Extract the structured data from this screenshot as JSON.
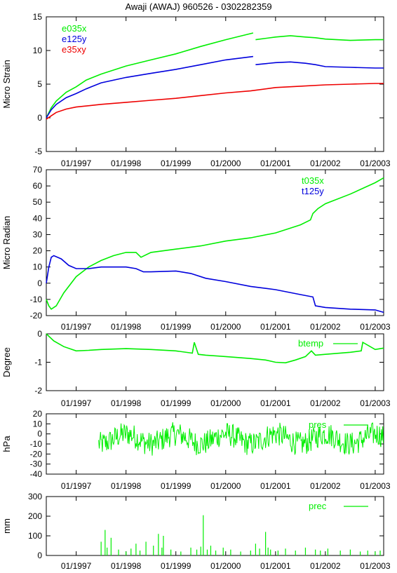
{
  "title": "Awaji (AWAJ) 960526 - 0302282359",
  "colors": {
    "green": "#00ee00",
    "blue": "#0000dd",
    "red": "#ee0000"
  },
  "x_time_range": [
    1996.4,
    2003.17
  ],
  "x_tick_labels": [
    "01/1997",
    "01/1998",
    "01/1999",
    "01/2000",
    "01/2001",
    "01/2002",
    "01/2003"
  ],
  "chart_data": [
    {
      "type": "line",
      "ylabel": "Micro Strain",
      "ylim": [
        -5,
        15
      ],
      "yticks": [
        -5,
        0,
        5,
        10,
        15
      ],
      "legend_position": "top-left",
      "series": [
        {
          "name": "e035x",
          "color": "#00ee00",
          "x": [
            1996.4,
            1996.5,
            1996.6,
            1996.8,
            1997.0,
            1997.2,
            1997.5,
            1998.0,
            1998.5,
            1999.0,
            1999.5,
            2000.0,
            2000.55,
            null,
            2000.6,
            2001.0,
            2001.3,
            2001.6,
            2001.8,
            2002.0,
            2002.5,
            2003.0,
            2003.17
          ],
          "y": [
            0.0,
            1.5,
            2.5,
            3.8,
            4.6,
            5.6,
            6.5,
            7.7,
            8.6,
            9.5,
            10.6,
            11.6,
            12.6,
            null,
            11.6,
            12.0,
            12.2,
            12.0,
            11.9,
            11.7,
            11.5,
            11.6,
            11.6
          ]
        },
        {
          "name": "e125y",
          "color": "#0000dd",
          "x": [
            1996.4,
            1996.5,
            1996.6,
            1996.8,
            1997.0,
            1997.2,
            1997.5,
            1998.0,
            1998.5,
            1999.0,
            1999.5,
            2000.0,
            2000.55,
            null,
            2000.6,
            2001.0,
            2001.3,
            2001.6,
            2001.8,
            2002.0,
            2002.5,
            2003.0,
            2003.17
          ],
          "y": [
            0.0,
            1.2,
            2.0,
            3.0,
            3.6,
            4.3,
            5.2,
            6.0,
            6.6,
            7.2,
            7.9,
            8.6,
            9.1,
            null,
            7.9,
            8.2,
            8.3,
            8.1,
            7.9,
            7.6,
            7.5,
            7.4,
            7.4
          ]
        },
        {
          "name": "e35xy",
          "color": "#ee0000",
          "x": [
            1996.4,
            1996.5,
            1996.6,
            1996.8,
            1997.0,
            1997.5,
            1998.0,
            1998.5,
            1999.0,
            1999.5,
            2000.0,
            2000.5,
            2001.0,
            2001.5,
            2002.0,
            2002.5,
            2003.0,
            2003.17
          ],
          "y": [
            -0.2,
            0.3,
            0.8,
            1.3,
            1.6,
            2.0,
            2.3,
            2.6,
            2.9,
            3.3,
            3.7,
            4.0,
            4.5,
            4.7,
            4.9,
            5.0,
            5.1,
            5.1
          ]
        }
      ]
    },
    {
      "type": "line",
      "ylabel": "Micro Radian",
      "ylim": [
        -20,
        70
      ],
      "yticks": [
        -20,
        -10,
        0,
        10,
        20,
        30,
        40,
        50,
        60,
        70
      ],
      "legend_position": "top-right",
      "series": [
        {
          "name": "t035x",
          "color": "#00ee00",
          "x": [
            1996.4,
            1996.45,
            1996.5,
            1996.6,
            1996.75,
            1997.0,
            1997.25,
            1997.5,
            1997.75,
            1998.0,
            1998.2,
            1998.3,
            1998.5,
            1999.0,
            1999.5,
            2000.0,
            2000.5,
            2001.0,
            2001.5,
            2001.7,
            2001.75,
            2001.85,
            2002.0,
            2002.5,
            2003.0,
            2003.17
          ],
          "y": [
            -10,
            -14,
            -16,
            -14,
            -6,
            4,
            10,
            14,
            17,
            19,
            19,
            16,
            19,
            21,
            23,
            26,
            28,
            31,
            36,
            39,
            43,
            46,
            49,
            55,
            62,
            65
          ]
        },
        {
          "name": "t125y",
          "color": "#0000dd",
          "x": [
            1996.4,
            1996.45,
            1996.5,
            1996.55,
            1996.7,
            1996.85,
            1997.0,
            1997.25,
            1997.5,
            1998.0,
            1998.2,
            1998.35,
            1998.5,
            1999.0,
            1999.3,
            1999.6,
            2000.0,
            2000.5,
            2001.0,
            2001.5,
            2001.75,
            2001.8,
            2002.0,
            2002.5,
            2003.0,
            2003.17
          ],
          "y": [
            0,
            10,
            16,
            17,
            15,
            11,
            9,
            9,
            10,
            10,
            9,
            7,
            7,
            7.5,
            6,
            3,
            1,
            -2,
            -4,
            -7,
            -8.5,
            -14,
            -15,
            -16,
            -16.5,
            -18
          ]
        }
      ]
    },
    {
      "type": "line",
      "ylabel": "Degree",
      "ylim": [
        -2,
        0
      ],
      "yticks": [
        -2,
        -1,
        0
      ],
      "legend_position": "top-right",
      "series": [
        {
          "name": "btemp",
          "color": "#00ee00",
          "x": [
            1996.4,
            1996.55,
            1996.75,
            1997.0,
            1997.25,
            1997.5,
            1998.0,
            1998.5,
            1999.0,
            1999.33,
            1999.37,
            1999.45,
            1999.6,
            2000.0,
            2000.5,
            2000.8,
            2001.0,
            2001.2,
            2001.4,
            2001.6,
            2001.72,
            2001.8,
            2002.0,
            2002.5,
            2002.72,
            2002.75,
            2003.0,
            2003.17
          ],
          "y": [
            0,
            -0.25,
            -0.45,
            -0.6,
            -0.58,
            -0.55,
            -0.52,
            -0.55,
            -0.6,
            -0.68,
            -0.3,
            -0.72,
            -0.75,
            -0.8,
            -0.87,
            -0.92,
            -1.0,
            -1.02,
            -0.92,
            -0.8,
            -0.6,
            -0.75,
            -0.72,
            -0.65,
            -0.6,
            -0.3,
            -0.55,
            -0.5
          ]
        }
      ]
    },
    {
      "type": "line",
      "ylabel": "hPa",
      "ylim": [
        -40,
        20
      ],
      "yticks": [
        -40,
        -30,
        -20,
        -10,
        0,
        10,
        20
      ],
      "legend_position": "top-right",
      "series": [
        {
          "name": "pres",
          "color": "#00ee00",
          "x_start": 1997.45,
          "x_end": 2003.17,
          "step_years": 0.0125,
          "seasonal_mean_amplitude": 5,
          "noise_range": [
            -30,
            12
          ]
        }
      ]
    },
    {
      "type": "bar",
      "ylabel": "mm",
      "ylim": [
        0,
        300
      ],
      "yticks": [
        0,
        100,
        200,
        300
      ],
      "legend_position": "top-right",
      "series": [
        {
          "name": "prec",
          "color": "#00ee00",
          "x": [
            1997.5,
            1997.58,
            1997.62,
            1997.7,
            1997.85,
            1998.0,
            1998.1,
            1998.2,
            1998.28,
            1998.4,
            1998.55,
            1998.65,
            1998.72,
            1998.75,
            1998.9,
            1999.1,
            1999.3,
            1999.42,
            1999.5,
            1999.55,
            1999.63,
            1999.7,
            1999.8,
            1999.95,
            2000.1,
            2000.3,
            2000.5,
            2000.6,
            2000.68,
            2000.8,
            2000.85,
            2000.9,
            2001.05,
            2001.2,
            2001.4,
            2001.6,
            2001.8,
            2001.9,
            2002.05,
            2002.3,
            2002.5,
            2002.7,
            2002.85,
            2003.0,
            2003.1
          ],
          "y": [
            70,
            130,
            40,
            90,
            30,
            20,
            35,
            60,
            25,
            70,
            50,
            110,
            40,
            100,
            30,
            20,
            40,
            30,
            45,
            205,
            30,
            50,
            25,
            40,
            30,
            20,
            25,
            60,
            35,
            120,
            40,
            30,
            25,
            35,
            25,
            40,
            30,
            25,
            35,
            25,
            30,
            20,
            25,
            20,
            25
          ]
        }
      ]
    }
  ]
}
